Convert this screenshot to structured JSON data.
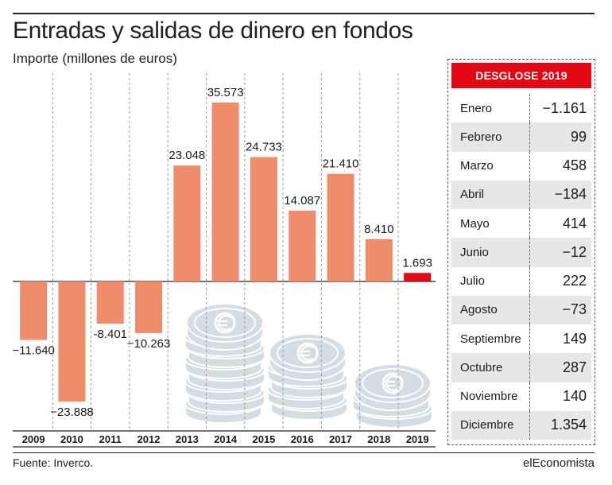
{
  "header": {
    "title": "Entradas y salidas de dinero en fondos",
    "subtitle": "Importe (millones de euros)"
  },
  "chart_data": {
    "type": "bar",
    "title": "Entradas y salidas de dinero en fondos",
    "subtitle": "Importe (millones de euros)",
    "categories": [
      "2009",
      "2010",
      "2011",
      "2012",
      "2013",
      "2014",
      "2015",
      "2016",
      "2017",
      "2018",
      "2019"
    ],
    "values": [
      -11640,
      -23888,
      -8401,
      -10263,
      23048,
      35573,
      24733,
      14087,
      21410,
      8410,
      1693
    ],
    "value_labels": [
      "−11.640",
      "−23.888",
      "-8.401",
      "−10.263",
      "23.048",
      "35.573",
      "24.733",
      "14.087",
      "21.410",
      "8.410",
      "1.693"
    ],
    "colors": {
      "default": "#ef8c6c",
      "highlight": "#e30613",
      "highlight_category": "2019"
    },
    "grid": "vertical dashed separators"
  },
  "breakdown": {
    "header": "DESGLOSE 2019",
    "rows": [
      {
        "month": "Enero",
        "value": "−1.161"
      },
      {
        "month": "Febrero",
        "value": "99"
      },
      {
        "month": "Marzo",
        "value": "458"
      },
      {
        "month": "Abril",
        "value": "−184"
      },
      {
        "month": "Mayo",
        "value": "414"
      },
      {
        "month": "Junio",
        "value": "−12"
      },
      {
        "month": "Julio",
        "value": "222"
      },
      {
        "month": "Agosto",
        "value": "−73"
      },
      {
        "month": "Septiembre",
        "value": "149"
      },
      {
        "month": "Octubre",
        "value": "287"
      },
      {
        "month": "Noviembre",
        "value": "140"
      },
      {
        "month": "Diciembre",
        "value": "1.354"
      }
    ]
  },
  "footer": {
    "source": "Fuente: Inverco.",
    "brand": "elEconomista"
  },
  "decoration": {
    "coin_icon": "euro-coin-stack-icon",
    "coin_color": "#d3dde3"
  }
}
